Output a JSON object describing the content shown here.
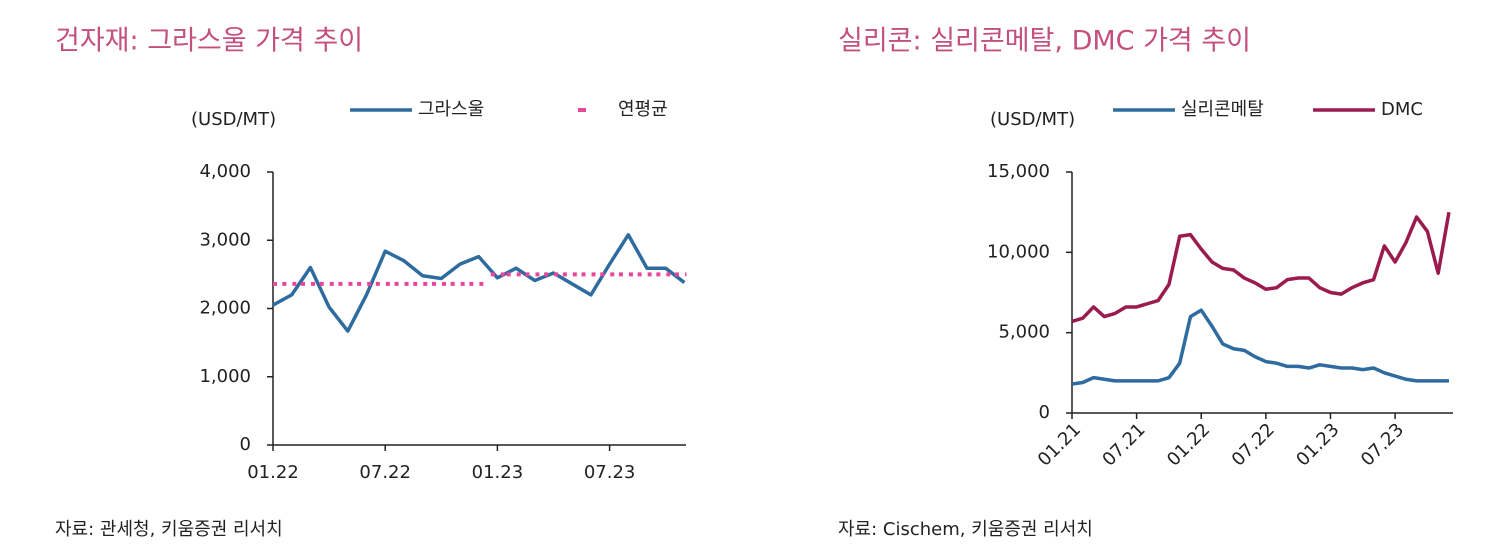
{
  "chart_data": [
    {
      "type": "line",
      "title": "건자재: 그라스울 가격 추이",
      "ylabel": "(USD/MT)",
      "source": "자료: 관세청, 키움증권 리서치",
      "categories": [
        "01.22",
        null,
        null,
        null,
        null,
        null,
        "07.22",
        null,
        null,
        null,
        null,
        null,
        "01.23",
        null,
        null,
        null,
        null,
        null,
        "07.23",
        null,
        null,
        null,
        null
      ],
      "series": [
        {
          "name": "그라스울",
          "color": "#2e6b9e",
          "style": "solid",
          "values": [
            2050,
            2200,
            2600,
            2020,
            1670,
            2200,
            2840,
            2700,
            2480,
            2440,
            2650,
            2760,
            2450,
            2590,
            2410,
            2520,
            2360,
            2200,
            2650,
            3080,
            2590,
            2590,
            2380
          ]
        },
        {
          "name": "연평균",
          "color": "#e8469b",
          "style": "dotted",
          "values": [
            2360,
            2360,
            2360,
            2360,
            2360,
            2360,
            2360,
            2360,
            2360,
            2360,
            2360,
            2360,
            2500,
            2500,
            2500,
            2500,
            2500,
            2500,
            2500,
            2500,
            2500,
            2500,
            2500
          ]
        }
      ],
      "ylim": [
        0,
        4000
      ],
      "yticks": [
        0,
        {
          "value": 1000,
          "label": "1,000"
        },
        {
          "value": 2000,
          "label": "2,000"
        },
        {
          "value": 3000,
          "label": "3,000"
        },
        {
          "value": 4000,
          "label": "4,000"
        }
      ],
      "legend": "top"
    },
    {
      "type": "line",
      "title": "실리콘: 실리콘메탈, DMC 가격 추이",
      "ylabel": "(USD/MT)",
      "source": "자료: Cischem, 키움증권 리서치",
      "categories": [
        "01.21",
        null,
        null,
        null,
        null,
        null,
        "07.21",
        null,
        null,
        null,
        null,
        null,
        "01.22",
        null,
        null,
        null,
        null,
        null,
        "07.22",
        null,
        null,
        null,
        null,
        null,
        "01.23",
        null,
        null,
        null,
        null,
        null,
        "07.23",
        null,
        null,
        null,
        null,
        null
      ],
      "series": [
        {
          "name": "실리콘메탈",
          "color": "#2e6b9e",
          "style": "solid",
          "values": [
            1800,
            1900,
            2200,
            2100,
            2000,
            2000,
            2000,
            2000,
            2000,
            2200,
            3100,
            6000,
            6400,
            5400,
            4300,
            4000,
            3900,
            3500,
            3200,
            3100,
            2900,
            2900,
            2800,
            3000,
            2900,
            2800,
            2800,
            2700,
            2800,
            2500,
            2300,
            2100,
            2000,
            2000,
            2000,
            2000
          ]
        },
        {
          "name": "DMC",
          "color": "#9b1b4f",
          "style": "solid",
          "values": [
            5700,
            5900,
            6600,
            6000,
            6200,
            6600,
            6600,
            6800,
            7000,
            8000,
            11000,
            11100,
            10200,
            9400,
            9000,
            8900,
            8400,
            8100,
            7700,
            7800,
            8300,
            8400,
            8400,
            7800,
            7500,
            7400,
            7800,
            8100,
            8300,
            10400,
            9400,
            10600,
            12200,
            11300,
            8700,
            12500
          ]
        }
      ],
      "ylim": [
        0,
        15000
      ],
      "yticks": [
        0,
        {
          "value": 5000,
          "label": "5,000"
        },
        {
          "value": 10000,
          "label": "10,000"
        },
        {
          "value": 15000,
          "label": "15,000"
        }
      ],
      "legend": "top"
    }
  ]
}
